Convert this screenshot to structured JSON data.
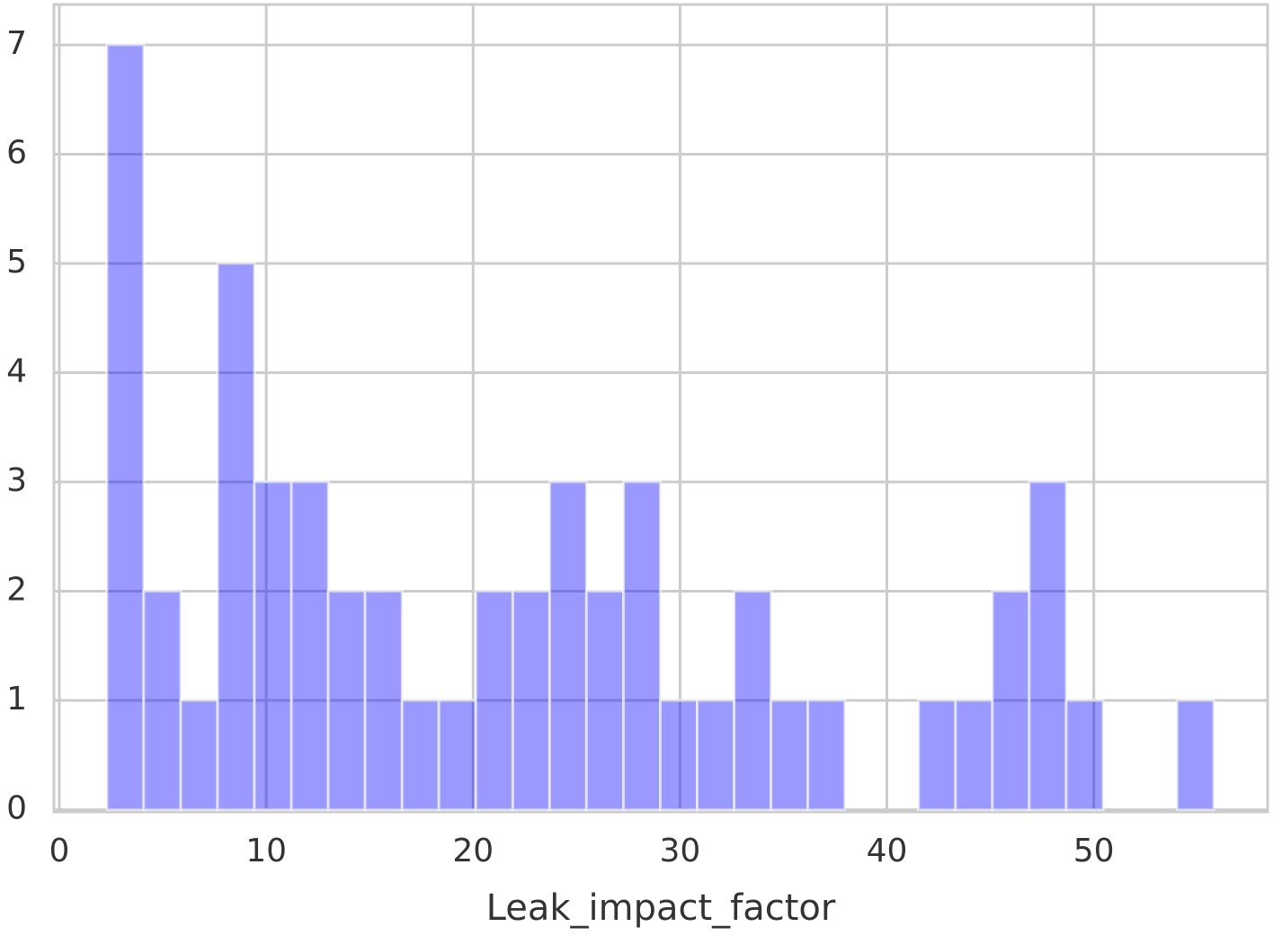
{
  "chart_data": {
    "type": "histogram",
    "xlabel": "Leak_impact_factor",
    "bins": [
      2.3,
      4.08,
      5.87,
      7.65,
      9.43,
      11.22,
      13.0,
      14.78,
      16.57,
      18.35,
      20.13,
      21.92,
      23.7,
      25.48,
      27.27,
      29.05,
      30.83,
      32.62,
      34.4,
      36.18,
      37.97,
      39.75,
      41.53,
      43.32,
      45.1,
      46.88,
      48.67,
      50.45,
      52.23,
      54.02,
      55.8
    ],
    "values": [
      7,
      2,
      1,
      5,
      3,
      3,
      2,
      2,
      1,
      1,
      2,
      2,
      3,
      2,
      3,
      1,
      1,
      2,
      1,
      1,
      0,
      0,
      1,
      1,
      2,
      3,
      1,
      0,
      0,
      1
    ],
    "color": "#0000ff",
    "alpha": 0.4,
    "xlim": [
      -0.26,
      58.4
    ],
    "xticks": [
      0,
      10,
      20,
      30,
      40,
      50
    ],
    "ylim": [
      -0.02,
      7.37
    ],
    "yticks": [
      0,
      1,
      2,
      3,
      4,
      5,
      6,
      7
    ],
    "grid": true
  }
}
